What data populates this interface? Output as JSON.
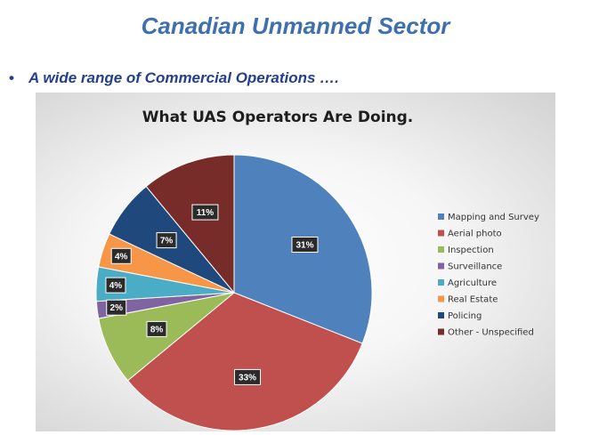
{
  "slide": {
    "title": "Canadian Unmanned Sector",
    "bullet_symbol": "•",
    "bullet_text": "A wide range of Commercial Operations …."
  },
  "chart_data": {
    "type": "pie",
    "title": "What UAS Operators Are Doing.",
    "legend_position": "right",
    "slices": [
      {
        "label": "Mapping and Survey",
        "value": 31,
        "display": "31%",
        "color": "#4f81bd"
      },
      {
        "label": "Aerial photo",
        "value": 33,
        "display": "33%",
        "color": "#c0504d"
      },
      {
        "label": "Inspection",
        "value": 8,
        "display": "8%",
        "color": "#9bbb59"
      },
      {
        "label": "Surveillance",
        "value": 2,
        "display": "2%",
        "color": "#8064a2"
      },
      {
        "label": "Agriculture",
        "value": 4,
        "display": "4%",
        "color": "#4bacc6"
      },
      {
        "label": "Real Estate",
        "value": 4,
        "display": "4%",
        "color": "#f79646"
      },
      {
        "label": "Policing",
        "value": 7,
        "display": "7%",
        "color": "#1f497d"
      },
      {
        "label": "Other - Unspecified",
        "value": 11,
        "display": "11%",
        "color": "#772c2a"
      }
    ]
  }
}
